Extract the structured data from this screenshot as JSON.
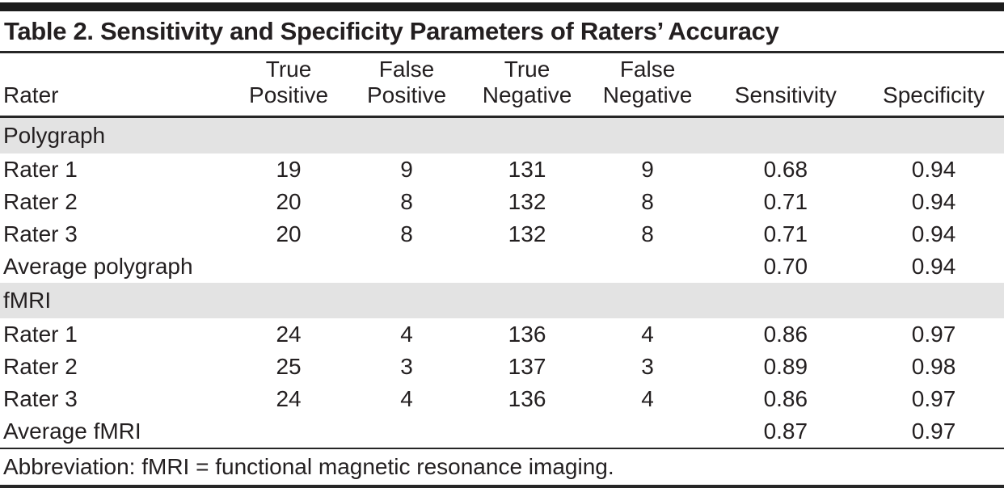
{
  "title": "Table 2. Sensitivity and Specificity Parameters of Raters’ Accuracy",
  "colors": {
    "text": "#231f20",
    "section_band": "#e3e3e3",
    "rule": "#262626"
  },
  "table": {
    "columns": [
      {
        "label": "Rater"
      },
      {
        "label": "True\nPositive"
      },
      {
        "label": "False\nPositive"
      },
      {
        "label": "True\nNegative"
      },
      {
        "label": "False\nNegative"
      },
      {
        "label": "Sensitivity"
      },
      {
        "label": "Specificity"
      }
    ],
    "sections": [
      {
        "header": "Polygraph",
        "rows": [
          {
            "rater": "Rater 1",
            "tp": "19",
            "fp": "9",
            "tn": "131",
            "fn": "9",
            "sens": "0.68",
            "spec": "0.94"
          },
          {
            "rater": "Rater 2",
            "tp": "20",
            "fp": "8",
            "tn": "132",
            "fn": "8",
            "sens": "0.71",
            "spec": "0.94"
          },
          {
            "rater": "Rater 3",
            "tp": "20",
            "fp": "8",
            "tn": "132",
            "fn": "8",
            "sens": "0.71",
            "spec": "0.94"
          },
          {
            "rater": "Average polygraph",
            "tp": "",
            "fp": "",
            "tn": "",
            "fn": "",
            "sens": "0.70",
            "spec": "0.94"
          }
        ]
      },
      {
        "header": "fMRI",
        "rows": [
          {
            "rater": "Rater 1",
            "tp": "24",
            "fp": "4",
            "tn": "136",
            "fn": "4",
            "sens": "0.86",
            "spec": "0.97"
          },
          {
            "rater": "Rater 2",
            "tp": "25",
            "fp": "3",
            "tn": "137",
            "fn": "3",
            "sens": "0.89",
            "spec": "0.98"
          },
          {
            "rater": "Rater 3",
            "tp": "24",
            "fp": "4",
            "tn": "136",
            "fn": "4",
            "sens": "0.86",
            "spec": "0.97"
          },
          {
            "rater": "Average fMRI",
            "tp": "",
            "fp": "",
            "tn": "",
            "fn": "",
            "sens": "0.87",
            "spec": "0.97"
          }
        ]
      }
    ]
  },
  "footnote": "Abbreviation: fMRI = functional magnetic resonance imaging."
}
